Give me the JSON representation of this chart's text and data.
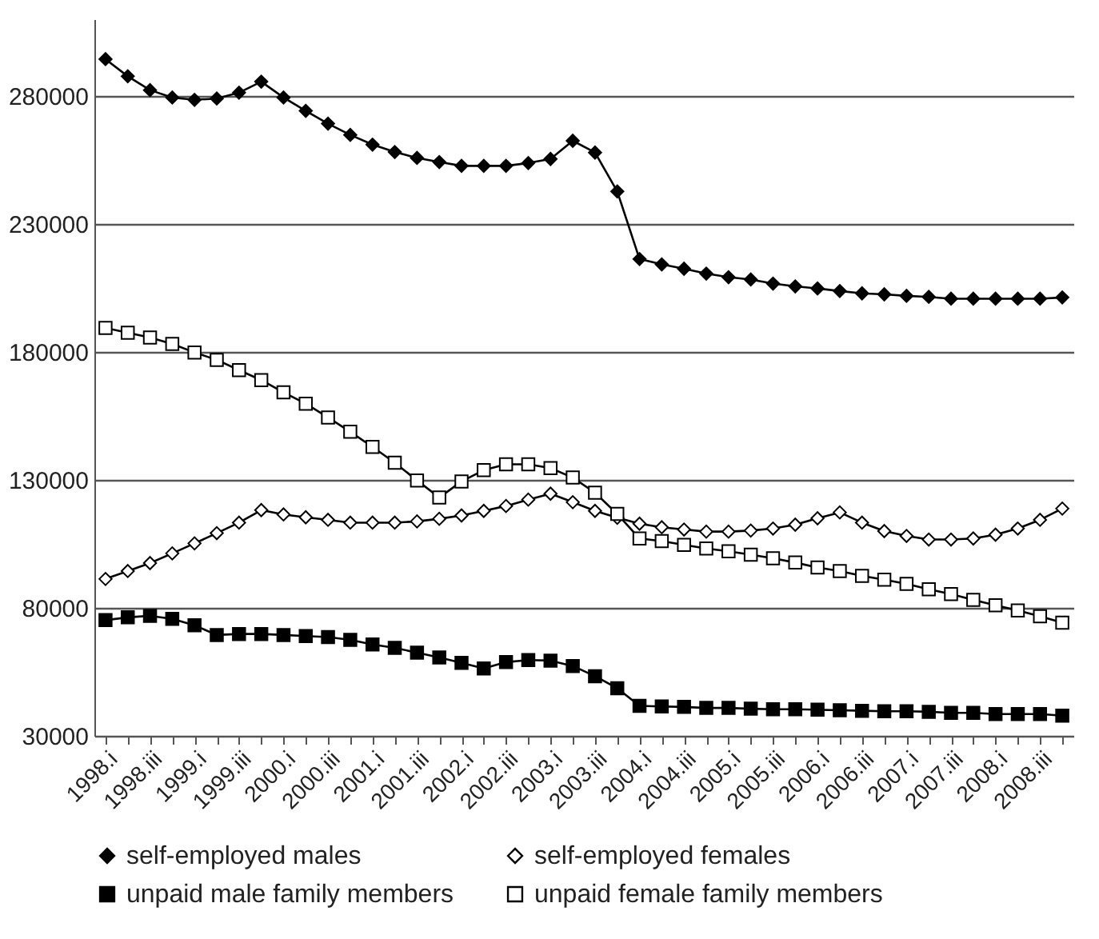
{
  "chart_data": {
    "type": "line",
    "categories": [
      "1998.i",
      null,
      "1998.iii",
      null,
      "1999.i",
      null,
      "1999.iii",
      null,
      "2000.i",
      null,
      "2000.iii",
      null,
      "2001.i",
      null,
      "2001.iii",
      null,
      "2002.i",
      null,
      "2002.iii",
      null,
      "2003.i",
      null,
      "2003.iii",
      null,
      "2004.i",
      null,
      "2004.iii",
      null,
      "2005.i",
      null,
      "2005.iii",
      null,
      "2006.i",
      null,
      "2006.iii",
      null,
      "2007.i",
      null,
      "2007.iii",
      null,
      "2008.i",
      null,
      "2008.iii",
      null
    ],
    "series": [
      {
        "name": "self-employed males",
        "color": "#000000",
        "marker": "diamond",
        "values": [
          294400,
          287700,
          282300,
          279400,
          278500,
          279000,
          281300,
          285600,
          279400,
          274200,
          269200,
          264800,
          261000,
          258100,
          255800,
          254200,
          252700,
          252700,
          252700,
          253800,
          255400,
          262500,
          257900,
          242700,
          216300,
          214200,
          212500,
          210600,
          209200,
          208300,
          206700,
          205600,
          204800,
          203800,
          202900,
          202500,
          201900,
          201500,
          200800,
          200800,
          200800,
          200800,
          200800,
          201300
        ]
      },
      {
        "name": "self-employed females",
        "color": "#ffffff",
        "marker": "diamond",
        "values": [
          91300,
          94400,
          97500,
          101300,
          105200,
          109200,
          113300,
          118200,
          116500,
          115400,
          114400,
          113300,
          113300,
          113300,
          113800,
          114800,
          116100,
          117900,
          119800,
          122300,
          124600,
          121300,
          117900,
          115200,
          112900,
          111500,
          110600,
          109800,
          109800,
          110200,
          111000,
          112500,
          115000,
          117300,
          113300,
          110000,
          108100,
          106700,
          106700,
          107100,
          108600,
          111000,
          114400,
          118800
        ]
      },
      {
        "name": "unpaid male family members",
        "color": "#000000",
        "marker": "square",
        "values": [
          75200,
          76300,
          76900,
          75700,
          73200,
          69400,
          69800,
          69800,
          69400,
          69000,
          68600,
          67500,
          65700,
          64400,
          62500,
          60600,
          58500,
          56300,
          58800,
          59600,
          59400,
          57300,
          53300,
          48600,
          41700,
          41500,
          41300,
          40900,
          40900,
          40600,
          40400,
          40400,
          40200,
          40000,
          39800,
          39600,
          39600,
          39400,
          39000,
          39000,
          38500,
          38500,
          38500,
          37900
        ]
      },
      {
        "name": "unpaid female family members",
        "color": "#ffffff",
        "marker": "square",
        "values": [
          189400,
          187500,
          185600,
          183100,
          179800,
          176900,
          172900,
          169000,
          164200,
          159800,
          154400,
          148800,
          142900,
          136700,
          129800,
          123100,
          129400,
          133800,
          136100,
          136100,
          134600,
          130900,
          125000,
          116700,
          107100,
          106100,
          104600,
          103200,
          102100,
          100800,
          99400,
          97700,
          95800,
          94400,
          92500,
          91000,
          89400,
          87300,
          85400,
          83100,
          81000,
          79000,
          76700,
          74200
        ]
      }
    ],
    "ylim": [
      30000,
      310000
    ],
    "yticks": [
      30000,
      80000,
      130000,
      180000,
      230000,
      280000
    ],
    "grid": "y",
    "legend": "bottom"
  }
}
